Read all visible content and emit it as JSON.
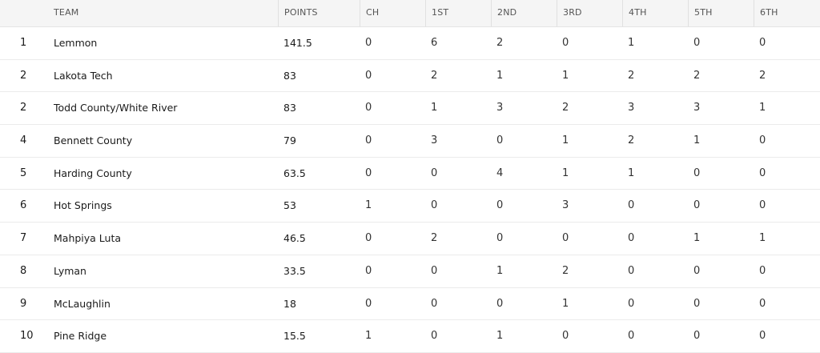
{
  "table": {
    "headers": {
      "rank": "",
      "team": "TEAM",
      "points": "POINTS",
      "ch": "CH",
      "first": "1ST",
      "second": "2ND",
      "third": "3RD",
      "fourth": "4TH",
      "fifth": "5TH",
      "sixth": "6TH"
    },
    "rows": [
      {
        "rank": "1",
        "team": "Lemmon",
        "points": "141.5",
        "ch": "0",
        "first": "6",
        "second": "2",
        "third": "0",
        "fourth": "1",
        "fifth": "0",
        "sixth": "0"
      },
      {
        "rank": "2",
        "team": "Lakota Tech",
        "points": "83",
        "ch": "0",
        "first": "2",
        "second": "1",
        "third": "1",
        "fourth": "2",
        "fifth": "2",
        "sixth": "2"
      },
      {
        "rank": "2",
        "team": "Todd County/White River",
        "points": "83",
        "ch": "0",
        "first": "1",
        "second": "3",
        "third": "2",
        "fourth": "3",
        "fifth": "3",
        "sixth": "1"
      },
      {
        "rank": "4",
        "team": "Bennett County",
        "points": "79",
        "ch": "0",
        "first": "3",
        "second": "0",
        "third": "1",
        "fourth": "2",
        "fifth": "1",
        "sixth": "0"
      },
      {
        "rank": "5",
        "team": "Harding County",
        "points": "63.5",
        "ch": "0",
        "first": "0",
        "second": "4",
        "third": "1",
        "fourth": "1",
        "fifth": "0",
        "sixth": "0"
      },
      {
        "rank": "6",
        "team": "Hot Springs",
        "points": "53",
        "ch": "1",
        "first": "0",
        "second": "0",
        "third": "3",
        "fourth": "0",
        "fifth": "0",
        "sixth": "0"
      },
      {
        "rank": "7",
        "team": "Mahpiya Luta",
        "points": "46.5",
        "ch": "0",
        "first": "2",
        "second": "0",
        "third": "0",
        "fourth": "0",
        "fifth": "1",
        "sixth": "1"
      },
      {
        "rank": "8",
        "team": "Lyman",
        "points": "33.5",
        "ch": "0",
        "first": "0",
        "second": "1",
        "third": "2",
        "fourth": "0",
        "fifth": "0",
        "sixth": "0"
      },
      {
        "rank": "9",
        "team": "McLaughlin",
        "points": "18",
        "ch": "0",
        "first": "0",
        "second": "0",
        "third": "1",
        "fourth": "0",
        "fifth": "0",
        "sixth": "0"
      },
      {
        "rank": "10",
        "team": "Pine Ridge",
        "points": "15.5",
        "ch": "1",
        "first": "0",
        "second": "1",
        "third": "0",
        "fourth": "0",
        "fifth": "0",
        "sixth": "0"
      }
    ]
  }
}
